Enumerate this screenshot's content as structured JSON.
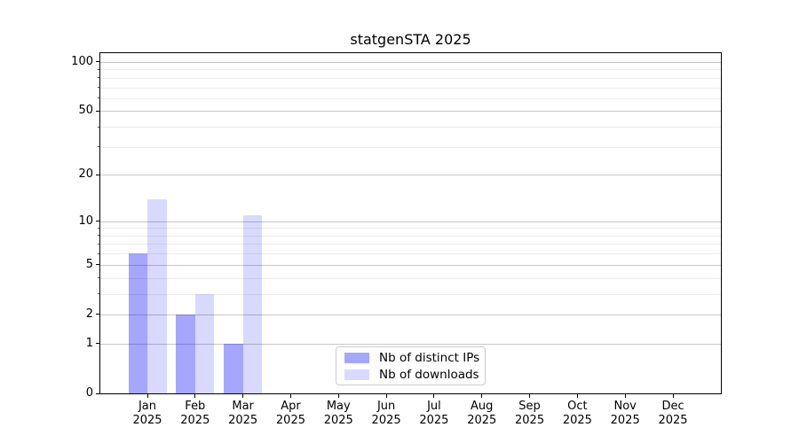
{
  "chart_data": {
    "type": "bar",
    "title": "statgenSTA 2025",
    "categories": [
      "Jan",
      "Feb",
      "Mar",
      "Apr",
      "May",
      "Jun",
      "Jul",
      "Aug",
      "Sep",
      "Oct",
      "Nov",
      "Dec"
    ],
    "category_year": "2025",
    "series": [
      {
        "name": "Nb of distinct IPs",
        "color": "rgba(0,0,255,0.35)",
        "values": [
          6,
          2,
          1,
          0,
          0,
          0,
          0,
          0,
          0,
          0,
          0,
          0
        ]
      },
      {
        "name": "Nb of downloads",
        "color": "rgba(0,0,255,0.15)",
        "values": [
          14,
          3,
          11,
          0,
          0,
          0,
          0,
          0,
          0,
          0,
          0,
          0
        ]
      }
    ],
    "scale": "log1p",
    "ylim": [
      0,
      113
    ],
    "y_ticks": [
      0,
      1,
      2,
      5,
      10,
      20,
      50,
      100
    ],
    "y_minor_ticks": [
      3,
      4,
      6,
      7,
      8,
      9,
      30,
      40,
      60,
      70,
      80,
      90
    ],
    "grid": true,
    "legend": {
      "position": "lower-center",
      "entries": [
        "Nb of distinct IPs",
        "Nb of downloads"
      ]
    },
    "colors": {
      "grid_major": "#c6c6c6",
      "grid_minor": "#ebebeb",
      "spine": "#000000",
      "text": "#000000",
      "legend_border": "#cccccc"
    }
  }
}
